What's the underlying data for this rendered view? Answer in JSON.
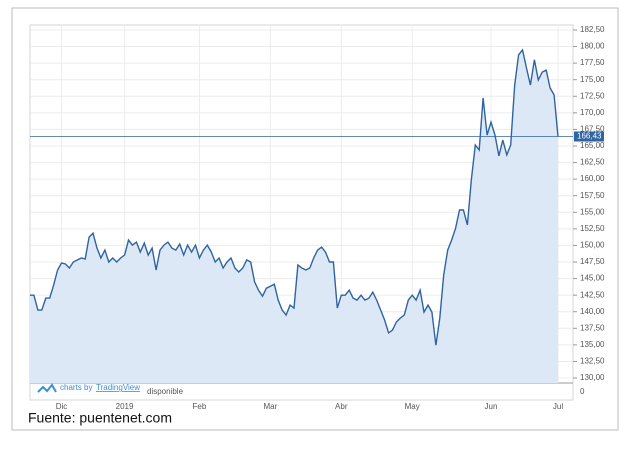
{
  "chart_data": {
    "type": "area",
    "values": [
      142.5,
      142.5,
      140.25,
      140.25,
      142.05,
      142.05,
      144.0,
      146.3,
      147.35,
      147.2,
      146.6,
      147.5,
      147.8,
      148.1,
      147.95,
      151.25,
      151.85,
      149.6,
      148.1,
      149.3,
      147.5,
      148.1,
      147.5,
      148.1,
      148.55,
      150.8,
      150.05,
      150.5,
      149.0,
      150.35,
      148.55,
      149.6,
      146.3,
      149.3,
      150.05,
      150.5,
      149.6,
      149.3,
      150.2,
      148.55,
      150.05,
      149.0,
      150.05,
      148.1,
      149.3,
      150.05,
      149.0,
      147.5,
      148.1,
      146.6,
      147.5,
      148.1,
      146.6,
      146.0,
      146.6,
      147.8,
      147.5,
      144.5,
      143.25,
      142.35,
      143.55,
      143.85,
      144.15,
      141.75,
      140.25,
      139.5,
      141.0,
      140.55,
      147.05,
      146.6,
      146.3,
      146.6,
      148.1,
      149.3,
      149.75,
      149.0,
      147.5,
      147.5,
      140.55,
      142.5,
      142.5,
      143.25,
      142.05,
      141.75,
      142.5,
      141.75,
      142.05,
      142.95,
      141.75,
      140.25,
      138.75,
      136.8,
      137.25,
      138.45,
      139.05,
      139.5,
      141.75,
      142.5,
      141.75,
      143.25,
      139.95,
      141.0,
      139.95,
      134.95,
      139.05,
      145.55,
      149.3,
      150.8,
      152.6,
      155.35,
      155.35,
      153.1,
      159.85,
      165.15,
      164.4,
      172.25,
      166.65,
      168.6,
      166.65,
      163.5,
      165.9,
      163.65,
      165.15,
      174.2,
      178.75,
      179.5,
      176.75,
      174.2,
      178.0,
      174.95,
      176.15,
      176.45,
      173.75,
      172.7,
      166.43
    ],
    "categories": [
      null,
      null,
      null,
      null,
      null,
      null,
      null,
      null,
      "Dic",
      null,
      null,
      null,
      null,
      null,
      null,
      null,
      null,
      null,
      null,
      null,
      null,
      null,
      null,
      null,
      "2019",
      null,
      null,
      null,
      null,
      null,
      null,
      null,
      null,
      null,
      null,
      null,
      null,
      null,
      null,
      null,
      null,
      null,
      null,
      "Feb",
      null,
      null,
      null,
      null,
      null,
      null,
      null,
      null,
      null,
      null,
      null,
      null,
      null,
      null,
      null,
      null,
      null,
      "Mar",
      null,
      null,
      null,
      null,
      null,
      null,
      null,
      null,
      null,
      null,
      null,
      null,
      null,
      null,
      null,
      null,
      null,
      "Abr",
      null,
      null,
      null,
      null,
      null,
      null,
      null,
      null,
      null,
      null,
      null,
      null,
      null,
      null,
      null,
      null,
      null,
      "May",
      null,
      null,
      null,
      null,
      null,
      null,
      null,
      null,
      null,
      null,
      null,
      null,
      null,
      null,
      null,
      null,
      null,
      null,
      null,
      "Jun",
      null,
      null,
      null,
      null,
      null,
      null,
      null,
      null,
      null,
      null,
      null,
      null,
      null,
      null,
      null,
      null,
      "Jul"
    ],
    "color": "#2f64a0",
    "fill_color": "#dce8f5",
    "ylim": [
      129.25,
      183.25
    ],
    "yticks": [
      {
        "value": 130,
        "label": "130,00"
      },
      {
        "value": 132.5,
        "label": "132,50"
      },
      {
        "value": 135,
        "label": "135,00"
      },
      {
        "value": 137.5,
        "label": "137,50"
      },
      {
        "value": 140,
        "label": "140,00"
      },
      {
        "value": 142.5,
        "label": "142,50"
      },
      {
        "value": 145,
        "label": "145,00"
      },
      {
        "value": 147.5,
        "label": "147,50"
      },
      {
        "value": 150,
        "label": "150,00"
      },
      {
        "value": 152.5,
        "label": "152,50"
      },
      {
        "value": 155,
        "label": "155,00"
      },
      {
        "value": 157.5,
        "label": "157,50"
      },
      {
        "value": 160,
        "label": "160,00"
      },
      {
        "value": 162.5,
        "label": "162,50"
      },
      {
        "value": 165,
        "label": "165,00"
      },
      {
        "value": 167.5,
        "label": "167,50"
      },
      {
        "value": 170,
        "label": "170,00"
      },
      {
        "value": 172.5,
        "label": "172,50"
      },
      {
        "value": 175,
        "label": "175,00"
      },
      {
        "value": 177.5,
        "label": "177,50"
      },
      {
        "value": 180,
        "label": "180,00"
      },
      {
        "value": 182.5,
        "label": "182,50"
      }
    ],
    "grid": true,
    "last_price": {
      "value": 166.43,
      "label": "166,43",
      "color": "#2f64a0"
    },
    "volume_pane": {
      "text": "disponible",
      "yticks": [
        0
      ]
    },
    "attribution": {
      "prefix": "charts by",
      "brand": "TradingView"
    },
    "source": "Fuente: puentenet.com"
  }
}
